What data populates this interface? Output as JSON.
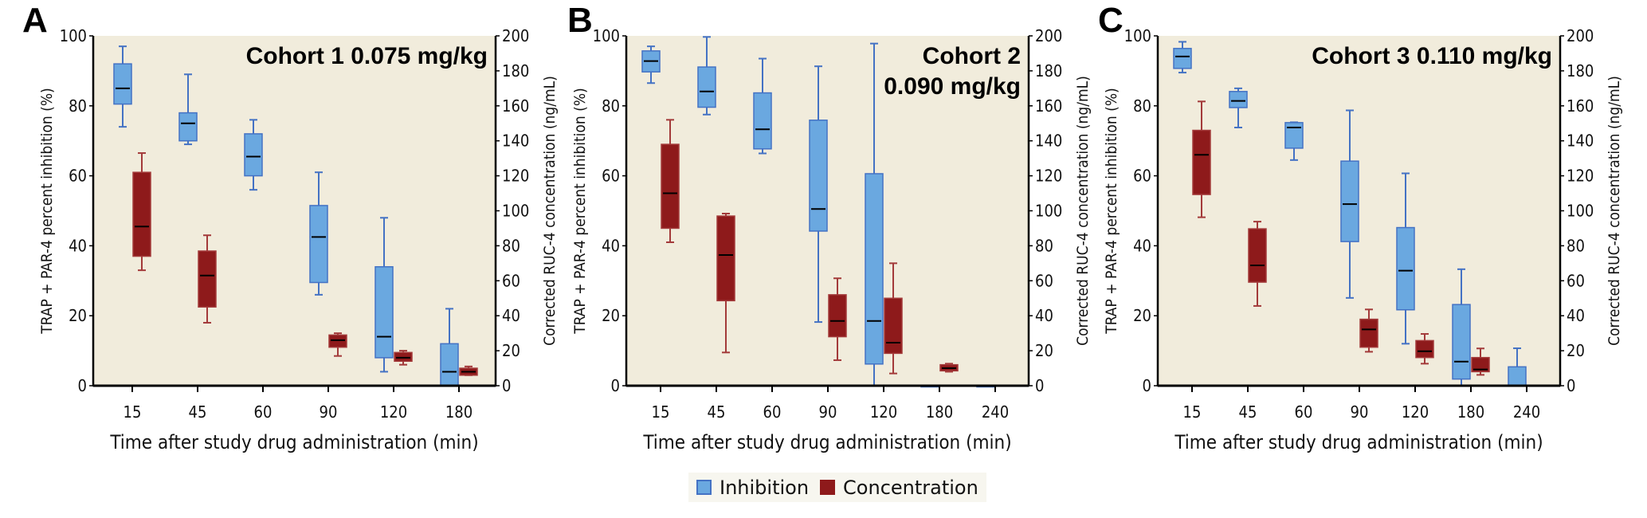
{
  "legend": {
    "items": [
      {
        "label": "Inhibition",
        "color": "#6aa8e0",
        "edge": "#4472c4"
      },
      {
        "label": "Concentration",
        "color": "#8e1a1b",
        "edge": "#8e1a1b"
      }
    ]
  },
  "colors": {
    "plot_background": "#f1ecdc",
    "inhibition_fill": "#6aa8e0",
    "inhibition_edge": "#4472c4",
    "concentration_fill": "#8e1a1b",
    "concentration_edge": "#a33a3a",
    "median": "#000000"
  },
  "chart_data": [
    {
      "type": "boxplot",
      "panel": "A",
      "title": "Cohort 1 0.075 mg/kg",
      "title_lines": [
        "Cohort 1 0.075 mg/kg"
      ],
      "xlabel": "Time after study drug administration (min)",
      "ylabel": "TRAP + PAR-4 percent inhibition (%)",
      "y2label": "Corrected RUC-4 concentration (ng/mL)",
      "ylim": [
        0,
        100
      ],
      "y2lim": [
        0,
        200
      ],
      "yticks": [
        0,
        20,
        40,
        60,
        80,
        100
      ],
      "y2ticks": [
        0,
        20,
        40,
        60,
        80,
        100,
        120,
        140,
        160,
        180,
        200
      ],
      "categories": [
        "15",
        "45",
        "60",
        "90",
        "120",
        "180"
      ],
      "series": [
        {
          "name": "Inhibition",
          "axis": "left",
          "boxes": [
            {
              "x": "15",
              "whisker_low": 74,
              "q1": 80.5,
              "median": 85,
              "q3": 92,
              "whisker_high": 97
            },
            {
              "x": "45",
              "whisker_low": 69,
              "q1": 70,
              "median": 75,
              "q3": 78,
              "whisker_high": 89
            },
            {
              "x": "60",
              "whisker_low": 56,
              "q1": 60,
              "median": 65.5,
              "q3": 72,
              "whisker_high": 76
            },
            {
              "x": "90",
              "whisker_low": 26,
              "q1": 29.5,
              "median": 42.5,
              "q3": 51.5,
              "whisker_high": 61
            },
            {
              "x": "120",
              "whisker_low": 4,
              "q1": 8,
              "median": 14,
              "q3": 34,
              "whisker_high": 48
            },
            {
              "x": "180",
              "whisker_low": 0,
              "q1": 0,
              "median": 4,
              "q3": 12,
              "whisker_high": 22
            }
          ]
        },
        {
          "name": "Concentration",
          "axis": "right",
          "boxes": [
            {
              "x": "15",
              "whisker_low": 66,
              "q1": 74,
              "median": 91,
              "q3": 122,
              "whisker_high": 133
            },
            {
              "x": "45",
              "whisker_low": 36,
              "q1": 45,
              "median": 63,
              "q3": 77,
              "whisker_high": 86
            },
            {
              "x": "60",
              "whisker_low": null,
              "q1": null,
              "median": null,
              "q3": null,
              "whisker_high": null
            },
            {
              "x": "90",
              "whisker_low": 17,
              "q1": 22,
              "median": 26,
              "q3": 29,
              "whisker_high": 30
            },
            {
              "x": "120",
              "whisker_low": 12,
              "q1": 14,
              "median": 16,
              "q3": 19,
              "whisker_high": 20
            },
            {
              "x": "180",
              "whisker_low": 6,
              "q1": 6,
              "median": 8,
              "q3": 10,
              "whisker_high": 11
            }
          ]
        }
      ]
    },
    {
      "type": "boxplot",
      "panel": "B",
      "title": "Cohort 2 0.090 mg/kg",
      "title_lines": [
        "Cohort 2",
        "0.090 mg/kg"
      ],
      "xlabel": "Time after study drug administration (min)",
      "ylabel": "TRAP + PAR-4 percent inhibition (%)",
      "y2label": "Corrected RUC-4 concentration (ng/mL)",
      "ylim": [
        0,
        100
      ],
      "y2lim": [
        0,
        200
      ],
      "yticks": [
        0,
        20,
        40,
        60,
        80,
        100
      ],
      "y2ticks": [
        0,
        20,
        40,
        60,
        80,
        100,
        120,
        140,
        160,
        180,
        200
      ],
      "categories": [
        "15",
        "45",
        "60",
        "90",
        "120",
        "180",
        "240"
      ],
      "series": [
        {
          "name": "Inhibition",
          "axis": "left",
          "boxes": [
            {
              "x": "15",
              "whisker_low": 86.5,
              "q1": 89.7,
              "median": 92.8,
              "q3": 95.7,
              "whisker_high": 97
            },
            {
              "x": "45",
              "whisker_low": 77.5,
              "q1": 79.6,
              "median": 84.1,
              "q3": 91.1,
              "whisker_high": 99.7
            },
            {
              "x": "60",
              "whisker_low": 66.4,
              "q1": 67.7,
              "median": 73.3,
              "q3": 83.7,
              "whisker_high": 93.5
            },
            {
              "x": "90",
              "whisker_low": 18.2,
              "q1": 44.2,
              "median": 50.5,
              "q3": 75.9,
              "whisker_high": 91.3
            },
            {
              "x": "120",
              "whisker_low": 0,
              "q1": 6.2,
              "median": 18.5,
              "q3": 60.6,
              "whisker_high": 97.8
            },
            {
              "x": "180",
              "whisker_low": 0,
              "q1": 0,
              "median": 0,
              "q3": 0,
              "whisker_high": 0
            },
            {
              "x": "240",
              "whisker_low": 0,
              "q1": 0,
              "median": 0,
              "q3": 0,
              "whisker_high": 0
            }
          ]
        },
        {
          "name": "Concentration",
          "axis": "right",
          "boxes": [
            {
              "x": "15",
              "whisker_low": 82,
              "q1": 90,
              "median": 110,
              "q3": 138,
              "whisker_high": 152
            },
            {
              "x": "45",
              "whisker_low": 19,
              "q1": 48.6,
              "median": 74.7,
              "q3": 97,
              "whisker_high": 98.4
            },
            {
              "x": "60",
              "whisker_low": null,
              "q1": null,
              "median": null,
              "q3": null,
              "whisker_high": null
            },
            {
              "x": "90",
              "whisker_low": 14.6,
              "q1": 28,
              "median": 37,
              "q3": 52,
              "whisker_high": 61.4
            },
            {
              "x": "120",
              "whisker_low": 7,
              "q1": 18.5,
              "median": 24.6,
              "q3": 50,
              "whisker_high": 70
            },
            {
              "x": "180",
              "whisker_low": 8,
              "q1": 8.5,
              "median": 10,
              "q3": 12,
              "whisker_high": 12.6
            },
            {
              "x": "240",
              "whisker_low": null,
              "q1": null,
              "median": null,
              "q3": null,
              "whisker_high": null
            }
          ]
        }
      ]
    },
    {
      "type": "boxplot",
      "panel": "C",
      "title": "Cohort 3 0.110 mg/kg",
      "title_lines": [
        "Cohort 3 0.110 mg/kg"
      ],
      "xlabel": "Time after study drug administration (min)",
      "ylabel": "TRAP + PAR-4 percent inhibition (%)",
      "y2label": "Corrected RUC-4 concentration (ng/mL)",
      "ylim": [
        0,
        100
      ],
      "y2lim": [
        0,
        200
      ],
      "yticks": [
        0,
        20,
        40,
        60,
        80,
        100
      ],
      "y2ticks": [
        0,
        20,
        40,
        60,
        80,
        100,
        120,
        140,
        160,
        180,
        200
      ],
      "categories": [
        "15",
        "45",
        "60",
        "90",
        "120",
        "180",
        "240"
      ],
      "series": [
        {
          "name": "Inhibition",
          "axis": "left",
          "boxes": [
            {
              "x": "15",
              "whisker_low": 89.5,
              "q1": 90.7,
              "median": 94.1,
              "q3": 96.4,
              "whisker_high": 98.3
            },
            {
              "x": "45",
              "whisker_low": 73.8,
              "q1": 79.5,
              "median": 81.4,
              "q3": 84.1,
              "whisker_high": 85
            },
            {
              "x": "60",
              "whisker_low": 64.5,
              "q1": 67.9,
              "median": 73.8,
              "q3": 75.2,
              "whisker_high": 75.3
            },
            {
              "x": "90",
              "whisker_low": 25.1,
              "q1": 41.2,
              "median": 51.9,
              "q3": 64.2,
              "whisker_high": 78.7
            },
            {
              "x": "120",
              "whisker_low": 12,
              "q1": 21.7,
              "median": 32.9,
              "q3": 45.2,
              "whisker_high": 60.7
            },
            {
              "x": "180",
              "whisker_low": 0,
              "q1": 1.9,
              "median": 6.9,
              "q3": 23.2,
              "whisker_high": 33.3
            },
            {
              "x": "240",
              "whisker_low": 0,
              "q1": 0,
              "median": 0,
              "q3": 5.4,
              "whisker_high": 10.7
            }
          ]
        },
        {
          "name": "Concentration",
          "axis": "right",
          "boxes": [
            {
              "x": "15",
              "whisker_low": 96.3,
              "q1": 109.3,
              "median": 132,
              "q3": 146,
              "whisker_high": 162.5
            },
            {
              "x": "45",
              "whisker_low": 45.6,
              "q1": 59.2,
              "median": 68.8,
              "q3": 89.7,
              "whisker_high": 93.8
            },
            {
              "x": "60",
              "whisker_low": null,
              "q1": null,
              "median": null,
              "q3": null,
              "whisker_high": null
            },
            {
              "x": "90",
              "whisker_low": 19.4,
              "q1": 22,
              "median": 32.2,
              "q3": 38,
              "whisker_high": 43.6
            },
            {
              "x": "120",
              "whisker_low": 12.6,
              "q1": 16.1,
              "median": 19.7,
              "q3": 25.8,
              "whisker_high": 29.6
            },
            {
              "x": "180",
              "whisker_low": 6.2,
              "q1": 8,
              "median": 9.3,
              "q3": 16.1,
              "whisker_high": 21.3
            },
            {
              "x": "240",
              "whisker_low": null,
              "q1": null,
              "median": null,
              "q3": null,
              "whisker_high": null
            }
          ]
        }
      ]
    }
  ]
}
